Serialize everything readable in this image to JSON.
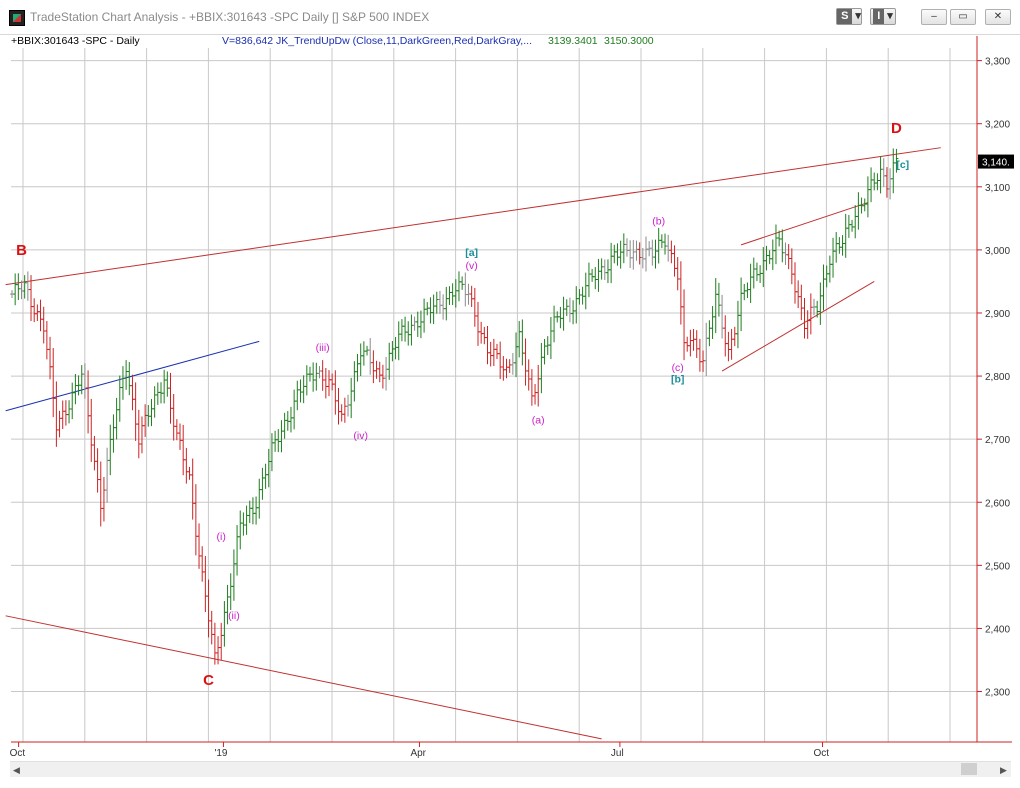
{
  "window": {
    "title": "TradeStation Chart Analysis - +BBIX:301643 -SPC Daily [] S&P 500 INDEX",
    "btn_s": "S",
    "btn_i": "I",
    "minimize": "–",
    "restore": "▭",
    "close": "✕"
  },
  "header": {
    "symbol": "+BBIX:301643 -SPC - Daily",
    "indicator": "V=836,642  JK_TrendUpDw (Close,11,DarkGreen,Red,DarkGray,...",
    "value1": "3139.3401",
    "value2": "3150.3000"
  },
  "colors": {
    "up": "#1e7d1e",
    "down": "#cc2222",
    "neutral": "#8a8a8a",
    "trend_red": "#c03030",
    "trend_blue": "#1a2fb0",
    "wave_magenta": "#cc22cc",
    "wave_teal": "#1a8f9a",
    "wave_red": "#dd1111",
    "axis": "#cc2222",
    "grid": "#c8c8c8"
  },
  "chart_data": {
    "type": "bar",
    "ylim": [
      2220,
      3320
    ],
    "yticks": [
      "3,300",
      "3,200",
      "3,100",
      "3,000",
      "2,900",
      "2,800",
      "2,700",
      "2,600",
      "2,500",
      "2,400",
      "2,300"
    ],
    "xticks": [
      {
        "label": "Oct",
        "x": "2018-10-01"
      },
      {
        "label": "'19",
        "x": "2019-01-02"
      },
      {
        "label": "Apr",
        "x": "2019-04-01"
      },
      {
        "label": "Jul",
        "x": "2019-07-01"
      },
      {
        "label": "Oct",
        "x": "2019-10-01"
      }
    ],
    "last_price": "3,140.",
    "anchors": [
      [
        0,
        2930
      ],
      [
        4,
        2940
      ],
      [
        10,
        2880
      ],
      [
        14,
        2720
      ],
      [
        22,
        2800
      ],
      [
        28,
        2600
      ],
      [
        32,
        2720
      ],
      [
        36,
        2820
      ],
      [
        40,
        2700
      ],
      [
        48,
        2800
      ],
      [
        52,
        2700
      ],
      [
        56,
        2640
      ],
      [
        60,
        2480
      ],
      [
        64,
        2350
      ],
      [
        68,
        2450
      ],
      [
        72,
        2560
      ],
      [
        76,
        2590
      ],
      [
        82,
        2680
      ],
      [
        90,
        2770
      ],
      [
        96,
        2810
      ],
      [
        100,
        2790
      ],
      [
        104,
        2730
      ],
      [
        110,
        2840
      ],
      [
        116,
        2800
      ],
      [
        122,
        2860
      ],
      [
        128,
        2890
      ],
      [
        134,
        2910
      ],
      [
        140,
        2940
      ],
      [
        144,
        2930
      ],
      [
        150,
        2840
      ],
      [
        156,
        2810
      ],
      [
        160,
        2860
      ],
      [
        164,
        2760
      ],
      [
        168,
        2850
      ],
      [
        172,
        2890
      ],
      [
        178,
        2920
      ],
      [
        184,
        2960
      ],
      [
        190,
        2990
      ],
      [
        196,
        3000
      ],
      [
        202,
        2990
      ],
      [
        206,
        3020
      ],
      [
        210,
        2960
      ],
      [
        212,
        2840
      ],
      [
        214,
        2860
      ],
      [
        218,
        2830
      ],
      [
        222,
        2920
      ],
      [
        226,
        2840
      ],
      [
        230,
        2920
      ],
      [
        234,
        2960
      ],
      [
        238,
        2990
      ],
      [
        242,
        3010
      ],
      [
        246,
        2970
      ],
      [
        250,
        2880
      ],
      [
        254,
        2910
      ],
      [
        258,
        2990
      ],
      [
        262,
        3010
      ],
      [
        266,
        3060
      ],
      [
        270,
        3090
      ],
      [
        274,
        3120
      ],
      [
        276,
        3110
      ],
      [
        279,
        3145
      ]
    ],
    "total_bars": 280,
    "trendlines": [
      {
        "color": "trend_red",
        "x1": -2,
        "y1": 2945,
        "x2": 293,
        "y2": 3162
      },
      {
        "color": "trend_red",
        "x1": -2,
        "y1": 2420,
        "x2": 186,
        "y2": 2225
      },
      {
        "color": "trend_blue",
        "x1": -2,
        "y1": 2745,
        "x2": 78,
        "y2": 2855
      },
      {
        "color": "trend_red",
        "x1": 230,
        "y1": 3008,
        "x2": 270,
        "y2": 3075
      },
      {
        "color": "trend_red",
        "x1": 224,
        "y1": 2808,
        "x2": 272,
        "y2": 2950
      }
    ],
    "labels": [
      {
        "text": "B",
        "i": 3,
        "v": 2992,
        "color": "wave_red",
        "big": true
      },
      {
        "text": "C",
        "i": 62,
        "v": 2310,
        "color": "wave_red",
        "big": true
      },
      {
        "text": "D",
        "i": 279,
        "v": 3185,
        "color": "wave_red",
        "big": true
      },
      {
        "text": "(i)",
        "i": 66,
        "v": 2540,
        "color": "wave_magenta"
      },
      {
        "text": "(ii)",
        "i": 70,
        "v": 2415,
        "color": "wave_magenta"
      },
      {
        "text": "(iii)",
        "i": 98,
        "v": 2840,
        "color": "wave_magenta"
      },
      {
        "text": "(iv)",
        "i": 110,
        "v": 2700,
        "color": "wave_magenta"
      },
      {
        "text": "(v)",
        "i": 145,
        "v": 2970,
        "color": "wave_magenta"
      },
      {
        "text": "[a]",
        "i": 145,
        "v": 2990,
        "color": "wave_teal"
      },
      {
        "text": "(a)",
        "i": 166,
        "v": 2725,
        "color": "wave_magenta"
      },
      {
        "text": "(b)",
        "i": 204,
        "v": 3040,
        "color": "wave_magenta"
      },
      {
        "text": "(c)",
        "i": 210,
        "v": 2808,
        "color": "wave_magenta"
      },
      {
        "text": "[b]",
        "i": 210,
        "v": 2790,
        "color": "wave_teal"
      },
      {
        "text": "[c]",
        "i": 281,
        "v": 3130,
        "color": "wave_teal"
      }
    ]
  }
}
